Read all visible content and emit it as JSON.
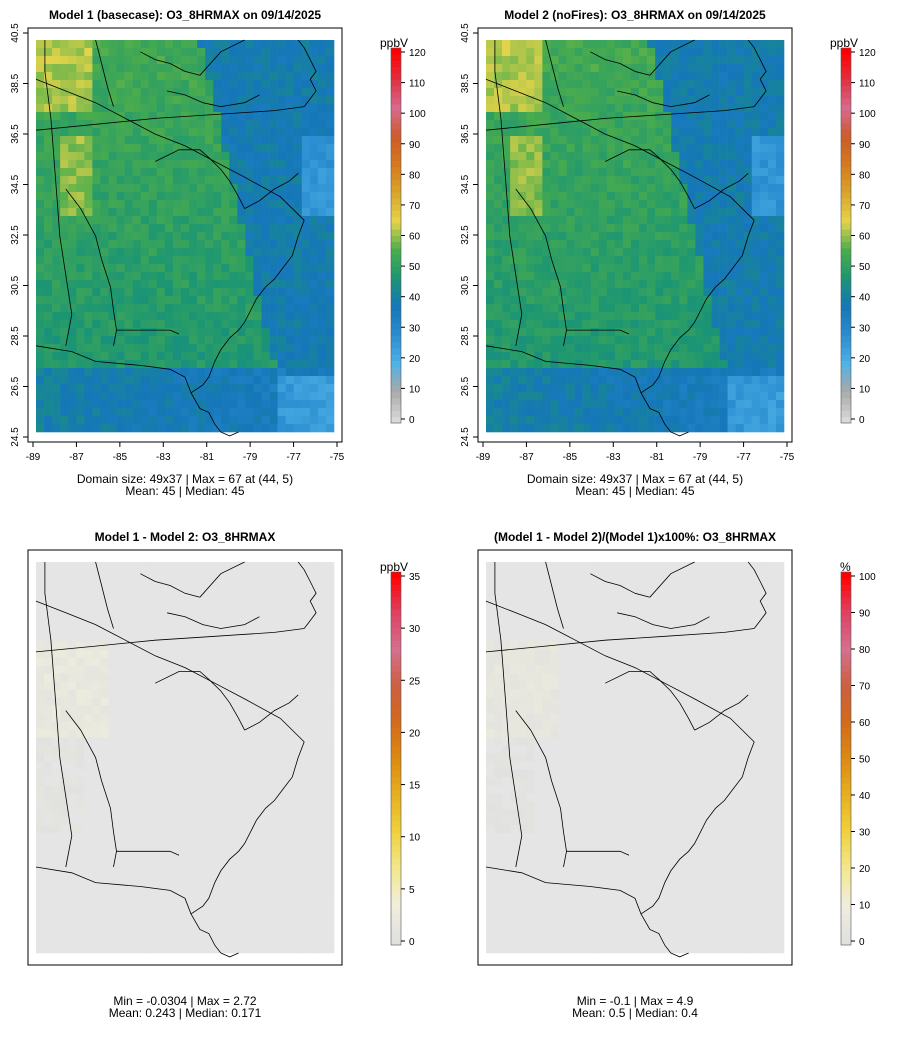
{
  "chart_data": [
    {
      "type": "heatmap",
      "title": "Model 1 (basecase): O3_8HRMAX on 09/14/2025",
      "xlabel": "",
      "ylabel": "",
      "x_ticks": [
        "-89",
        "-87",
        "-85",
        "-83",
        "-81",
        "-79",
        "-77",
        "-75"
      ],
      "y_ticks": [
        "24.5",
        "26.5",
        "28.5",
        "30.5",
        "32.5",
        "34.5",
        "36.5",
        "38.5",
        "40.5"
      ],
      "xlim": [
        -89,
        -75
      ],
      "ylim": [
        24.5,
        40.5
      ],
      "field": "o3",
      "colorbar": {
        "unit": "ppbV",
        "ticks": [
          "0",
          "10",
          "20",
          "30",
          "40",
          "50",
          "60",
          "70",
          "80",
          "90",
          "100",
          "110",
          "120"
        ],
        "range": [
          0,
          120
        ]
      },
      "stats_line1": "Domain size: 49x37 | Max = 67 at (44, 5)",
      "stats_line2": "Mean: 45 |  Median: 45"
    },
    {
      "type": "heatmap",
      "title": "Model 2 (noFires): O3_8HRMAX on 09/14/2025",
      "xlabel": "",
      "ylabel": "",
      "x_ticks": [
        "-89",
        "-87",
        "-85",
        "-83",
        "-81",
        "-79",
        "-77",
        "-75"
      ],
      "y_ticks": [
        "24.5",
        "26.5",
        "28.5",
        "30.5",
        "32.5",
        "34.5",
        "36.5",
        "38.5",
        "40.5"
      ],
      "xlim": [
        -89,
        -75
      ],
      "ylim": [
        24.5,
        40.5
      ],
      "field": "o3",
      "colorbar": {
        "unit": "ppbV",
        "ticks": [
          "0",
          "10",
          "20",
          "30",
          "40",
          "50",
          "60",
          "70",
          "80",
          "90",
          "100",
          "110",
          "120"
        ],
        "range": [
          0,
          120
        ]
      },
      "stats_line1": "Domain size: 49x37 | Max = 67 at (44, 5)",
      "stats_line2": "Mean: 45 |  Median: 45"
    },
    {
      "type": "heatmap",
      "title": "Model 1 - Model 2: O3_8HRMAX",
      "xlabel": "",
      "ylabel": "",
      "x_ticks": [],
      "y_ticks": [],
      "xlim": [
        -89,
        -75
      ],
      "ylim": [
        24.5,
        40.5
      ],
      "field": "diff",
      "colorbar": {
        "unit": "ppbV",
        "ticks": [
          "0",
          "5",
          "10",
          "15",
          "20",
          "25",
          "30",
          "35"
        ],
        "range": [
          0,
          35
        ]
      },
      "stats_line1": "Min = -0.0304 | Max = 2.72",
      "stats_line2": "Mean: 0.243 |  Median: 0.171"
    },
    {
      "type": "heatmap",
      "title": "(Model 1 - Model 2)/(Model 1)x100%: O3_8HRMAX",
      "xlabel": "",
      "ylabel": "",
      "x_ticks": [],
      "y_ticks": [],
      "xlim": [
        -89,
        -75
      ],
      "ylim": [
        24.5,
        40.5
      ],
      "field": "pct",
      "colorbar": {
        "unit": "%",
        "ticks": [
          "0",
          "10",
          "20",
          "30",
          "40",
          "50",
          "60",
          "70",
          "80",
          "90",
          "100"
        ],
        "range": [
          0,
          100
        ]
      },
      "stats_line1": "Min = -0.1 | Max = 4.9",
      "stats_line2": "Mean: 0.5 |  Median: 0.4"
    }
  ],
  "colors": {
    "o3_scale": [
      "#d9d9d9",
      "#a9a9a9",
      "#4fb2e6",
      "#2a8dd0",
      "#1577b8",
      "#1b9574",
      "#4aac4c",
      "#e6d44a",
      "#d8a52a",
      "#d57a1c",
      "#cc5a2a",
      "#d86a8e",
      "#e03040",
      "#ff0000"
    ],
    "diff_scale": [
      "#e0e0e0",
      "#f0eedc",
      "#f2e88f",
      "#f1d13c",
      "#e6b020",
      "#dc8a12",
      "#d46a1a",
      "#cc5f42",
      "#d4708f",
      "#e04060",
      "#ff0000"
    ],
    "map_background": "#e5e5e5",
    "boundary": "#000000"
  }
}
